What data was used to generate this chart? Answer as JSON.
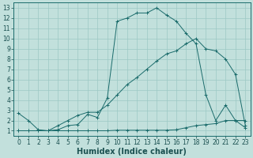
{
  "xlabel": "Humidex (Indice chaleur)",
  "xlim": [
    -0.5,
    23.5
  ],
  "ylim": [
    0.5,
    13.5
  ],
  "xticks": [
    0,
    1,
    2,
    3,
    4,
    5,
    6,
    7,
    8,
    9,
    10,
    11,
    12,
    13,
    14,
    15,
    16,
    17,
    18,
    19,
    20,
    21,
    22,
    23
  ],
  "yticks": [
    1,
    2,
    3,
    4,
    5,
    6,
    7,
    8,
    9,
    10,
    11,
    12,
    13
  ],
  "bg_color": "#c2e0dc",
  "grid_color": "#9cc8c4",
  "line_color": "#1a6b6b",
  "line1_x": [
    0,
    1,
    2,
    3,
    4,
    5,
    6,
    7,
    8,
    9,
    10,
    11,
    12,
    13,
    14,
    15,
    16,
    17,
    18,
    19,
    20,
    21,
    22,
    23
  ],
  "line1_y": [
    2.7,
    2.0,
    1.1,
    1.0,
    1.1,
    1.5,
    1.6,
    2.6,
    2.3,
    4.2,
    11.7,
    12.0,
    12.5,
    12.5,
    13.0,
    12.3,
    11.7,
    10.5,
    9.5,
    4.5,
    2.0,
    3.5,
    2.0,
    1.3
  ],
  "line2_x": [
    0,
    1,
    2,
    3,
    4,
    5,
    6,
    7,
    8,
    9,
    10,
    11,
    12,
    13,
    14,
    15,
    16,
    17,
    18,
    19,
    20,
    21,
    22,
    23
  ],
  "line2_y": [
    1.0,
    1.0,
    1.0,
    1.0,
    1.0,
    1.0,
    1.0,
    1.0,
    1.0,
    1.0,
    1.05,
    1.05,
    1.05,
    1.05,
    1.05,
    1.05,
    1.1,
    1.3,
    1.5,
    1.6,
    1.7,
    2.0,
    2.0,
    2.0
  ],
  "line3_x": [
    0,
    1,
    2,
    3,
    4,
    5,
    6,
    7,
    8,
    9,
    10,
    11,
    12,
    13,
    14,
    15,
    16,
    17,
    18,
    19,
    20,
    21,
    22,
    23
  ],
  "line3_y": [
    1.0,
    1.0,
    1.0,
    1.0,
    1.5,
    2.0,
    2.5,
    2.8,
    2.8,
    3.5,
    4.5,
    5.5,
    6.2,
    7.0,
    7.8,
    8.5,
    8.8,
    9.5,
    10.0,
    9.0,
    8.8,
    8.0,
    6.5,
    1.5
  ],
  "font_color": "#1a5050",
  "tick_fontsize": 5.5,
  "label_fontsize": 7.0
}
